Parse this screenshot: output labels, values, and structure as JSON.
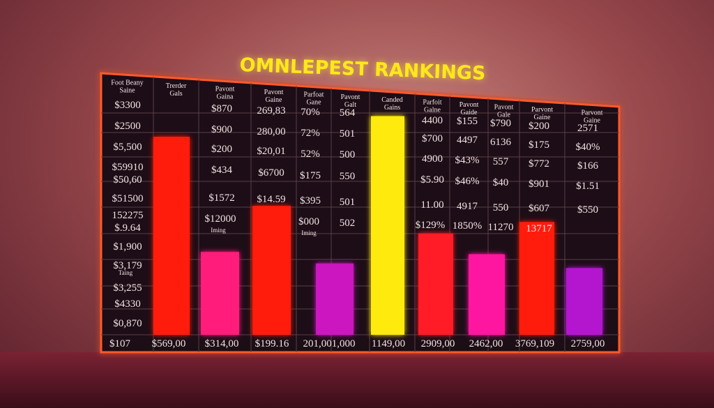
{
  "title": "OMNLEPEST RANKINGS",
  "chart_data": {
    "type": "bar",
    "title": "OMNLEPEST RANKINGS",
    "grid": true,
    "colors": [
      "#ff1a10",
      "#ff1a7a",
      "#ff1a10",
      "#cc14c0",
      "#ffea10",
      "#ff1a28",
      "#ff14a0",
      "#ff1a10",
      "#b414d0"
    ],
    "values": [
      0.86,
      0.36,
      0.56,
      0.31,
      0.95,
      0.44,
      0.35,
      0.49,
      0.29
    ],
    "ylim": [
      0,
      1
    ],
    "bottom_labels": [
      "$107",
      "$569,00",
      "$314,00",
      "$199.16",
      "201,001,000",
      "1149,00",
      "2909,00",
      "2462,00",
      "3769,109",
      "2759,00"
    ],
    "header_labels": [
      [
        "Foot Beany",
        "Saine"
      ],
      [
        "Trerder",
        "Gals"
      ],
      [
        "Pavont",
        "Gaina"
      ],
      [
        "Pavont",
        "Gaine"
      ],
      [
        "Parfoat",
        "Gane"
      ],
      [
        "Pavont",
        "Galt"
      ],
      [
        "Canded",
        "Gains"
      ],
      [
        "Parfoit",
        "Galne"
      ],
      [
        "Pavont",
        "Gaide"
      ],
      [
        "Pavont",
        "Gale"
      ],
      [
        "Parvont",
        "Gaine"
      ],
      [
        "Parvont",
        "Gaine"
      ]
    ],
    "row_labels": [
      "$3300",
      "$2500",
      "$5,500",
      "$59910",
      "$50,60",
      "$51500",
      "152275",
      "$.9.64",
      "$1,900",
      "$3,179",
      "$3,255",
      "$4330",
      "$0,870"
    ],
    "cells": [
      "$870",
      "269,83",
      "70%",
      "564",
      "$900",
      "280,00",
      "72%",
      "501",
      "$200",
      "$20,01",
      "52%",
      "500",
      "$434",
      "$6700",
      "$175",
      "550",
      "$1572",
      "$14.59",
      "$395",
      "501",
      "$12000",
      "$000",
      "502",
      "4400",
      "$155",
      "$790",
      "$200",
      "2571",
      "$700",
      "4497",
      "6136",
      "$175",
      "$40%",
      "4900",
      "$43%",
      "557",
      "$772",
      "$166",
      "$5.90",
      "$46%",
      "$40",
      "$901",
      "$1.51",
      "11.00",
      "4917",
      "550",
      "$607",
      "$550",
      "$129%",
      "1850%",
      "11270",
      "13717"
    ],
    "small_notes": [
      "Iming",
      "Iming",
      "Taing"
    ]
  }
}
